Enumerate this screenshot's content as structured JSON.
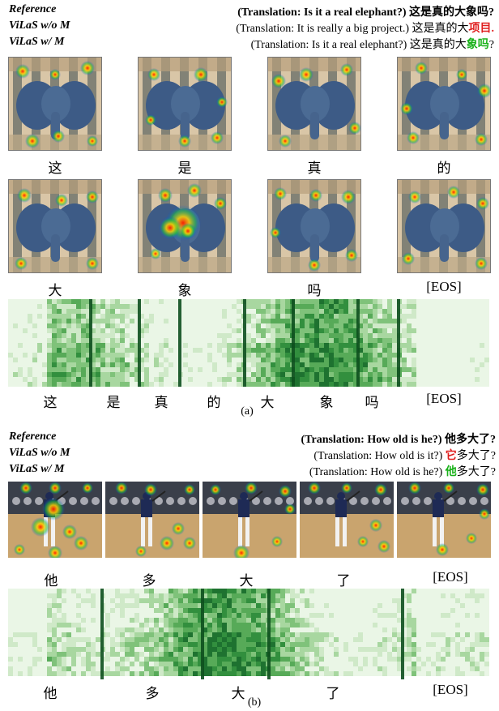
{
  "panel_a": {
    "rows": [
      {
        "label": "Reference",
        "translation": "(Translation: Is it a real elephant?)",
        "prefix": "这是真的大象吗?",
        "highlight": "",
        "suffix": "",
        "bold": true,
        "hl_color": ""
      },
      {
        "label": "ViLaS w/o M",
        "translation": "(Translation: It is really a big project.)",
        "prefix": "这是真的大",
        "highlight": "项目.",
        "suffix": "",
        "bold": false,
        "hl_color": "red"
      },
      {
        "label": "ViLaS w/ M",
        "translation": "(Translation: Is it a real elephant?)",
        "prefix": "这是真的大",
        "highlight": "象吗",
        "suffix": "?",
        "bold": false,
        "hl_color": "green"
      }
    ],
    "tokens_row1": [
      "这",
      "是",
      "真",
      "的"
    ],
    "tokens_row2": [
      "大",
      "象",
      "吗",
      "[EOS]"
    ],
    "spectrogram_tokens": [
      "这",
      "是",
      "真",
      "的",
      "大",
      "象",
      "吗",
      "[EOS]"
    ],
    "caption": "(a)"
  },
  "panel_b": {
    "rows": [
      {
        "label": "Reference",
        "translation": "(Translation: How old is he?)",
        "prefix": "他多大了?",
        "highlight": "",
        "suffix": "",
        "bold": true,
        "hl_color": ""
      },
      {
        "label": "ViLaS w/o M",
        "translation": "(Translation: How old is it?)",
        "prefix": "",
        "highlight": "它",
        "suffix": "多大了?",
        "bold": false,
        "hl_color": "red"
      },
      {
        "label": "ViLaS w/ M",
        "translation": "(Translation: How old is he?)",
        "prefix": "",
        "highlight": "他",
        "suffix": "多大了?",
        "bold": false,
        "hl_color": "green"
      }
    ],
    "tokens": [
      "他",
      "多",
      "大",
      "了",
      "[EOS]"
    ],
    "spectrogram_tokens": [
      "他",
      "多",
      "大",
      "了",
      "[EOS]"
    ],
    "caption": "(b)"
  }
}
